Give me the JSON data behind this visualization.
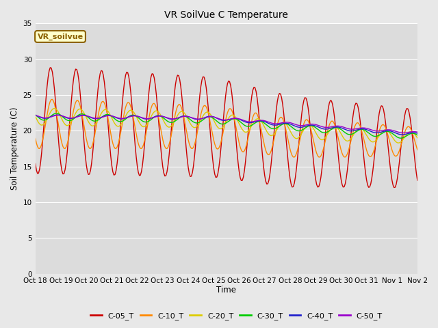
{
  "title": "VR SoilVue C Temperature",
  "ylabel": "Soil Temperature (C)",
  "xlabel": "Time",
  "ylim": [
    0,
    35
  ],
  "yticks": [
    0,
    5,
    10,
    15,
    20,
    25,
    30,
    35
  ],
  "bg_color": "#dcdcdc",
  "outer_bg": "#e8e8e8",
  "annotation_label": "VR_soilvue",
  "series": {
    "C-05_T": {
      "color": "#cc0000"
    },
    "C-10_T": {
      "color": "#ff8800"
    },
    "C-20_T": {
      "color": "#ddcc00"
    },
    "C-30_T": {
      "color": "#00cc00"
    },
    "C-40_T": {
      "color": "#2020cc"
    },
    "C-50_T": {
      "color": "#9900cc"
    }
  },
  "xtick_labels": [
    "Oct 18",
    "Oct 19",
    "Oct 20",
    "Oct 21",
    "Oct 22",
    "Oct 23",
    "Oct 24",
    "Oct 25",
    "Oct 26",
    "Oct 27",
    "Oct 28",
    "Oct 29",
    "Oct 30",
    "Oct 31",
    "Nov 1",
    "Nov 2"
  ]
}
